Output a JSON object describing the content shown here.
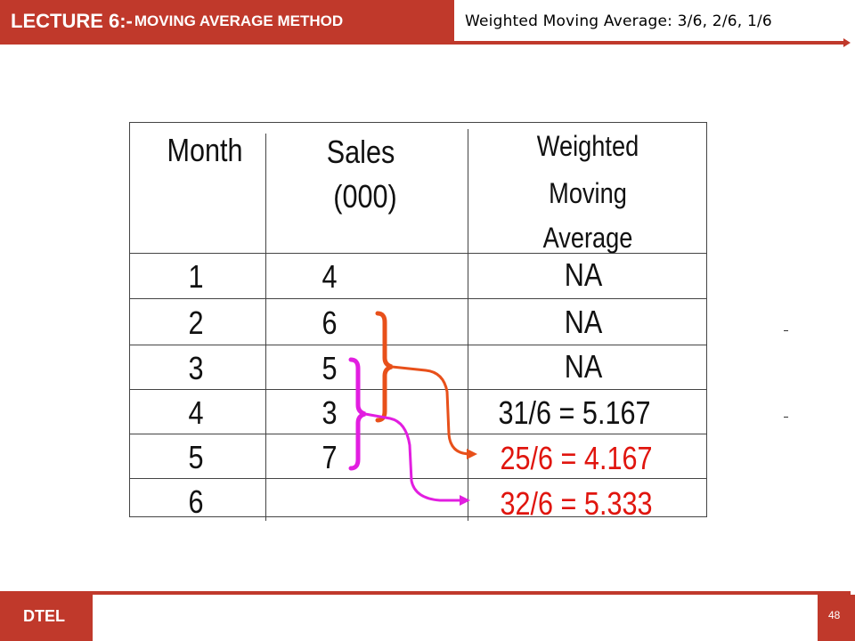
{
  "header": {
    "lecture_prefix": "LECTURE 6:-",
    "lecture_title": "MOVING AVERAGE METHOD",
    "subtitle": "Weighted Moving Average: 3/6, 2/6, 1/6"
  },
  "table": {
    "columns": [
      "Month",
      "Sales",
      "(000)",
      "Weighted",
      "Moving",
      "Average"
    ],
    "rows": [
      {
        "month": "1",
        "sales": "4",
        "wma": "NA"
      },
      {
        "month": "2",
        "sales": "6",
        "wma": "NA"
      },
      {
        "month": "3",
        "sales": "5",
        "wma": "NA"
      },
      {
        "month": "4",
        "sales": "3",
        "wma": "31/6 = 5.167"
      },
      {
        "month": "5",
        "sales": "7",
        "wma": "25/6 = 4.167"
      },
      {
        "month": "6",
        "sales": "",
        "wma": "32/6 = 5.333"
      }
    ]
  },
  "colors": {
    "accent": "#c0392b",
    "highlight_red": "#e0150e",
    "arrow_orange": "#e8501a",
    "arrow_magenta": "#e21ee0"
  },
  "footer": {
    "org": "DTEL",
    "page": "48"
  }
}
